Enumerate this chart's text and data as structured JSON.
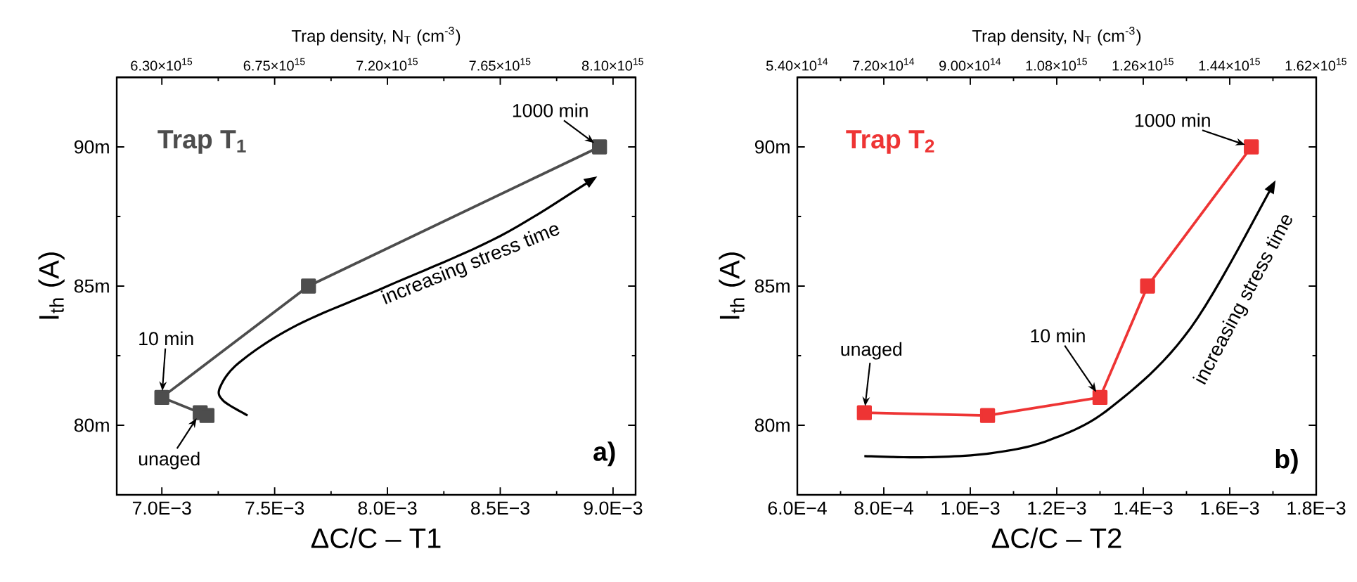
{
  "chart_data": [
    {
      "type": "line",
      "xlabel": "ΔC/C – T1",
      "ylabel": "I$_{th}$ (A)",
      "x2label": "Trap density, N$_{T}$ (cm$^{-3}$)",
      "xlim": [
        0.0068,
        0.0091
      ],
      "xticks": [
        {
          "value": 0.007,
          "label": "7.0E−3"
        },
        {
          "value": 0.0075,
          "label": "7.5E−3"
        },
        {
          "value": 0.008,
          "label": "8.0E−3"
        },
        {
          "value": 0.0085,
          "label": "8.5E−3"
        },
        {
          "value": 0.009,
          "label": "9.0E−3"
        }
      ],
      "ylim": [
        77.5,
        92.5
      ],
      "yticks": [
        {
          "value": 80,
          "label": "80m"
        },
        {
          "value": 85,
          "label": "85m"
        },
        {
          "value": 90,
          "label": "90m"
        }
      ],
      "x2lim": [
        6120000000000000.0,
        8190000000000000.0
      ],
      "x2ticks": [
        {
          "value": 6300000000000000.0,
          "label": "6.30×10$^{15}$"
        },
        {
          "value": 6750000000000000.0,
          "label": "6.75×10$^{15}$"
        },
        {
          "value": 7200000000000000.0,
          "label": "7.20×10$^{15}$"
        },
        {
          "value": 7650000000000000.0,
          "label": "7.65×10$^{15}$"
        },
        {
          "value": 8100000000000000.0,
          "label": "8.10×10$^{15}$"
        }
      ],
      "marker": "square",
      "line_style": "solid",
      "grid": false,
      "legend": false,
      "series": [
        {
          "name": "Trap T$_{1}$",
          "color": "#4d4d4d",
          "x": [
            0.00717,
            0.0072,
            0.007,
            0.00765,
            0.00894
          ],
          "values": [
            80.45,
            80.35,
            81.0,
            85.0,
            90.0
          ]
        }
      ],
      "annotations": [
        {
          "text": "unaged",
          "x": 0.00717,
          "y": 80.45
        },
        {
          "text": "10 min",
          "x": 0.007,
          "y": 81.0
        },
        {
          "text": "1000 min",
          "x": 0.00894,
          "y": 90.0
        },
        "increasing stress time",
        "a)"
      ]
    },
    {
      "type": "line",
      "xlabel": "ΔC/C – T2",
      "ylabel": "I$_{th}$ (A)",
      "x2label": "Trap density, N$_{T}$ (cm$^{-3}$)",
      "xlim": [
        0.0006,
        0.0018
      ],
      "xticks": [
        {
          "value": 0.0006,
          "label": "6.0E−4"
        },
        {
          "value": 0.0008,
          "label": "8.0E−4"
        },
        {
          "value": 0.001,
          "label": "1.0E−3"
        },
        {
          "value": 0.0012,
          "label": "1.2E−3"
        },
        {
          "value": 0.0014,
          "label": "1.4E−3"
        },
        {
          "value": 0.0016,
          "label": "1.6E−3"
        },
        {
          "value": 0.0018,
          "label": "1.8E−3"
        }
      ],
      "ylim": [
        77.5,
        92.5
      ],
      "yticks": [
        {
          "value": 80,
          "label": "80m"
        },
        {
          "value": 85,
          "label": "85m"
        },
        {
          "value": 90,
          "label": "90m"
        }
      ],
      "x2lim": [
        540000000000000.0,
        1620000000000000.0
      ],
      "x2ticks": [
        {
          "value": 540000000000000.0,
          "label": "5.40×10$^{14}$"
        },
        {
          "value": 720000000000000.0,
          "label": "7.20×10$^{14}$"
        },
        {
          "value": 900000000000000.0,
          "label": "9.00×10$^{14}$"
        },
        {
          "value": 1080000000000000.0,
          "label": "1.08×10$^{15}$"
        },
        {
          "value": 1260000000000000.0,
          "label": "1.26×10$^{15}$"
        },
        {
          "value": 1440000000000000.0,
          "label": "1.44×10$^{15}$"
        },
        {
          "value": 1620000000000000.0,
          "label": "1.62×10$^{15}$"
        }
      ],
      "marker": "square",
      "line_style": "solid",
      "grid": false,
      "legend": false,
      "series": [
        {
          "name": "Trap T$_{2}$",
          "color": "#ee3434",
          "x": [
            0.000755,
            0.00104,
            0.0013,
            0.00141,
            0.00165
          ],
          "values": [
            80.45,
            80.35,
            81.0,
            85.0,
            90.0
          ]
        }
      ],
      "annotations": [
        {
          "text": "unaged",
          "x": 0.000755,
          "y": 80.45
        },
        {
          "text": "10 min",
          "x": 0.0013,
          "y": 81.0
        },
        {
          "text": "1000 min",
          "x": 0.00165,
          "y": 90.0
        },
        "increasing stress time",
        "b)"
      ]
    }
  ]
}
